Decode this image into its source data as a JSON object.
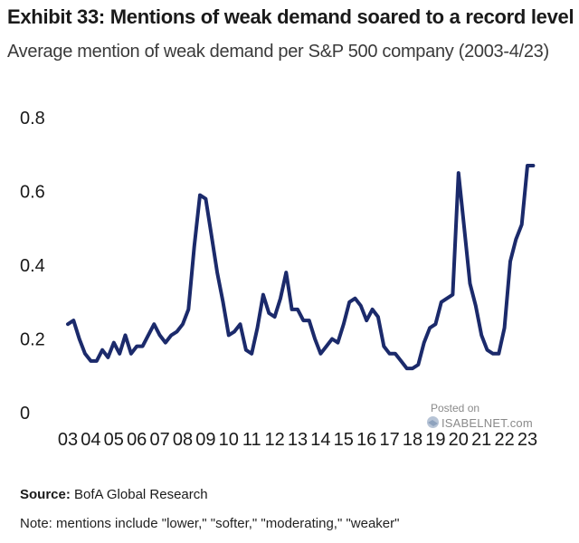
{
  "header": {
    "title": "Exhibit 33: Mentions of weak demand soared to a record level",
    "subtitle": "Average mention of weak demand per S&P 500 company (2003-4/23)"
  },
  "footer": {
    "source_label": "Source:",
    "source_text": "BofA Global Research",
    "note": "Note: mentions include \"lower,\" \"softer,\" \"moderating,\" \"weaker\""
  },
  "watermark": {
    "line1": "Posted on",
    "line2": "ISABELNET.com"
  },
  "colors": {
    "line": "#1b2a6b"
  },
  "chart_data": {
    "type": "line",
    "title": "Exhibit 33: Mentions of weak demand soared to a record level",
    "subtitle": "Average mention of weak demand per S&P 500 company (2003-4/23)",
    "xlabel": "",
    "ylabel": "",
    "ylim": [
      0,
      0.8
    ],
    "yticks": [
      0,
      0.2,
      0.4,
      0.6,
      0.8
    ],
    "ytick_labels": [
      "0",
      "0.2",
      "0.4",
      "0.6",
      "0.8"
    ],
    "xticks": [
      2003,
      2004,
      2005,
      2006,
      2007,
      2008,
      2009,
      2010,
      2011,
      2012,
      2013,
      2014,
      2015,
      2016,
      2017,
      2018,
      2019,
      2020,
      2021,
      2022,
      2023
    ],
    "xtick_labels": [
      "03",
      "04",
      "05",
      "06",
      "07",
      "08",
      "09",
      "10",
      "11",
      "12",
      "13",
      "14",
      "15",
      "16",
      "17",
      "18",
      "19",
      "20",
      "21",
      "22",
      "23"
    ],
    "grid": false,
    "legend": "none",
    "series": [
      {
        "x": [
          2003.0,
          2003.25,
          2003.5,
          2003.75,
          2004.0,
          2004.25,
          2004.5,
          2004.75,
          2005.0,
          2005.25,
          2005.5,
          2005.75,
          2006.0,
          2006.25,
          2006.5,
          2006.75,
          2007.0,
          2007.25,
          2007.5,
          2007.75,
          2008.0,
          2008.25,
          2008.5,
          2008.75,
          2009.0,
          2009.25,
          2009.5,
          2009.75,
          2010.0,
          2010.25,
          2010.5,
          2010.75,
          2011.0,
          2011.25,
          2011.5,
          2011.75,
          2012.0,
          2012.25,
          2012.5,
          2012.75,
          2013.0,
          2013.25,
          2013.5,
          2013.75,
          2014.0,
          2014.25,
          2014.5,
          2014.75,
          2015.0,
          2015.25,
          2015.5,
          2015.75,
          2016.0,
          2016.25,
          2016.5,
          2016.75,
          2017.0,
          2017.25,
          2017.5,
          2017.75,
          2018.0,
          2018.25,
          2018.5,
          2018.75,
          2019.0,
          2019.25,
          2019.5,
          2019.75,
          2020.0,
          2020.25,
          2020.5,
          2020.75,
          2021.0,
          2021.25,
          2021.5,
          2021.75,
          2022.0,
          2022.25,
          2022.5,
          2022.75,
          2023.0,
          2023.25
        ],
        "values": [
          0.24,
          0.25,
          0.2,
          0.16,
          0.14,
          0.14,
          0.17,
          0.15,
          0.19,
          0.16,
          0.21,
          0.16,
          0.18,
          0.18,
          0.21,
          0.24,
          0.21,
          0.19,
          0.21,
          0.22,
          0.24,
          0.28,
          0.45,
          0.59,
          0.58,
          0.48,
          0.38,
          0.3,
          0.21,
          0.22,
          0.24,
          0.17,
          0.16,
          0.23,
          0.32,
          0.27,
          0.26,
          0.31,
          0.38,
          0.28,
          0.28,
          0.25,
          0.25,
          0.2,
          0.16,
          0.18,
          0.2,
          0.19,
          0.24,
          0.3,
          0.31,
          0.29,
          0.25,
          0.28,
          0.26,
          0.18,
          0.16,
          0.16,
          0.14,
          0.12,
          0.12,
          0.13,
          0.19,
          0.23,
          0.24,
          0.3,
          0.31,
          0.32,
          0.65,
          0.5,
          0.35,
          0.29,
          0.21,
          0.17,
          0.16,
          0.16,
          0.23,
          0.41,
          0.47,
          0.51,
          0.67,
          0.67
        ]
      }
    ]
  }
}
